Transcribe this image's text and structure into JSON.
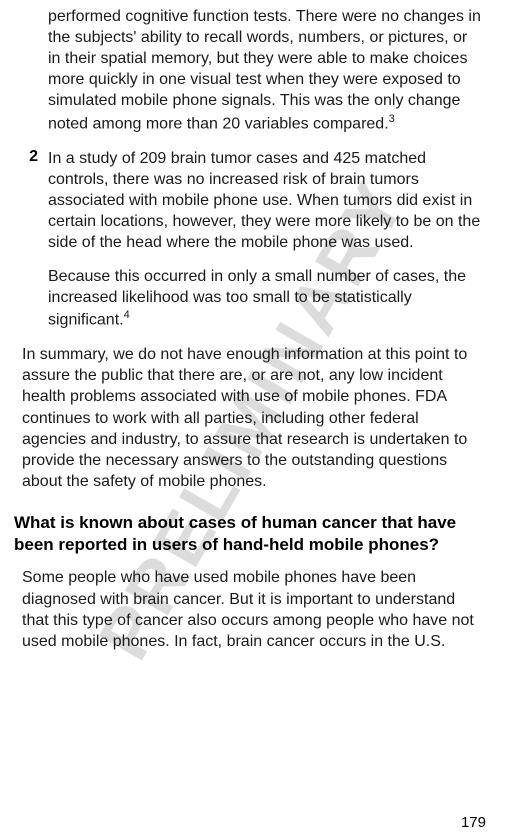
{
  "watermark": "PRELIMINARY",
  "item1": {
    "text": "performed cognitive function tests. There were no changes in the subjects' ability to recall words, numbers, or pictures, or in their spatial memory, but they were able to make choices more quickly in one visual test when they were exposed to simulated mobile phone signals. This was the only change noted among more than 20 variables compared.",
    "sup": "3"
  },
  "item2": {
    "num": "2",
    "p1": "In a study of 209 brain tumor cases and 425 matched controls, there was no increased risk of brain tumors associated with mobile phone use. When tumors did exist in certain locations, however, they were more likely to be on the side of the head where the mobile phone was used.",
    "p2": "Because this occurred in only a small number of cases, the increased likelihood was too small to be statistically significant.",
    "sup": "4"
  },
  "summary": "In summary, we do not have enough information at this point to assure the public that there are, or are not, any low incident health problems associated with use of mobile phones. FDA continues to work with all parties, including other federal agencies and industry, to assure that research is undertaken to provide the necessary answers to the outstanding questions about the safety of mobile phones.",
  "heading": "What is known about cases of human cancer that have been reported in users of hand-held mobile phones?",
  "body": "Some people who have used mobile phones have been diagnosed with brain cancer. But it is important to understand that this type of cancer also occurs among people who have not used mobile phones. In fact, brain cancer occurs in the U.S.",
  "pageNumber": "179"
}
